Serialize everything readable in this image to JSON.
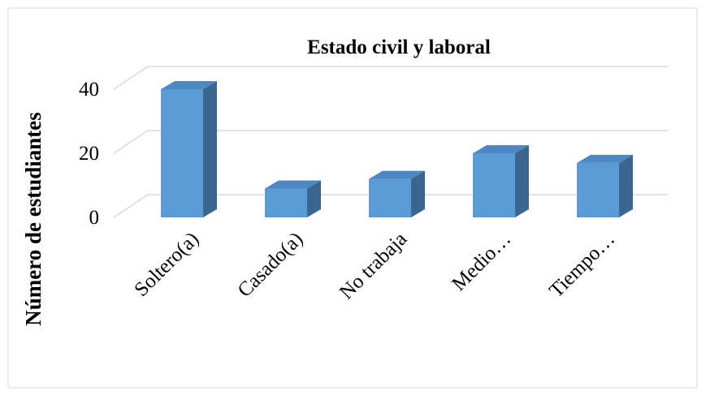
{
  "chart_data": {
    "type": "bar3d",
    "title": "Estado civil y laboral",
    "y_label": "Número de estudiantes",
    "categories": [
      "Soltero(a)",
      "Casado(a)",
      "No trabaja",
      "Medio…",
      "Tiempo…"
    ],
    "values": [
      40,
      9,
      12,
      20,
      17
    ],
    "color": "#5b9bd5",
    "ylim": [
      0,
      40
    ],
    "yticks": [
      0,
      20,
      40
    ],
    "grid": true
  }
}
